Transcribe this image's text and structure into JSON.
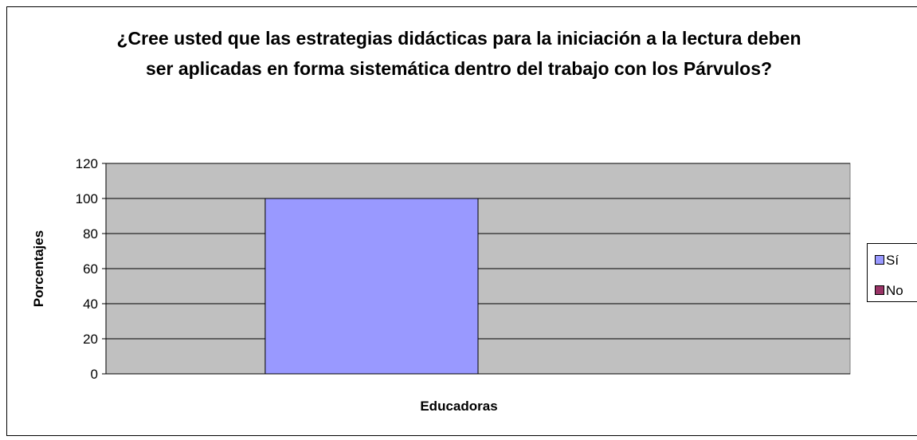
{
  "chart_data": {
    "type": "bar",
    "title": "¿Cree usted que las estrategias didácticas para la iniciación a la lectura deben ser aplicadas en forma sistemática dentro del trabajo con los Párvulos?",
    "xlabel": "Educadoras",
    "ylabel": "Porcentajes",
    "categories": [
      null
    ],
    "series": [
      {
        "name": "Sí",
        "color": "#9999ff",
        "values": [
          100
        ]
      },
      {
        "name": "No",
        "color": "#993366",
        "values": [
          0
        ]
      }
    ],
    "ylim": [
      0,
      120
    ],
    "yticks": [
      0,
      20,
      40,
      60,
      80,
      100,
      120
    ],
    "grid": true,
    "legend": "right"
  }
}
